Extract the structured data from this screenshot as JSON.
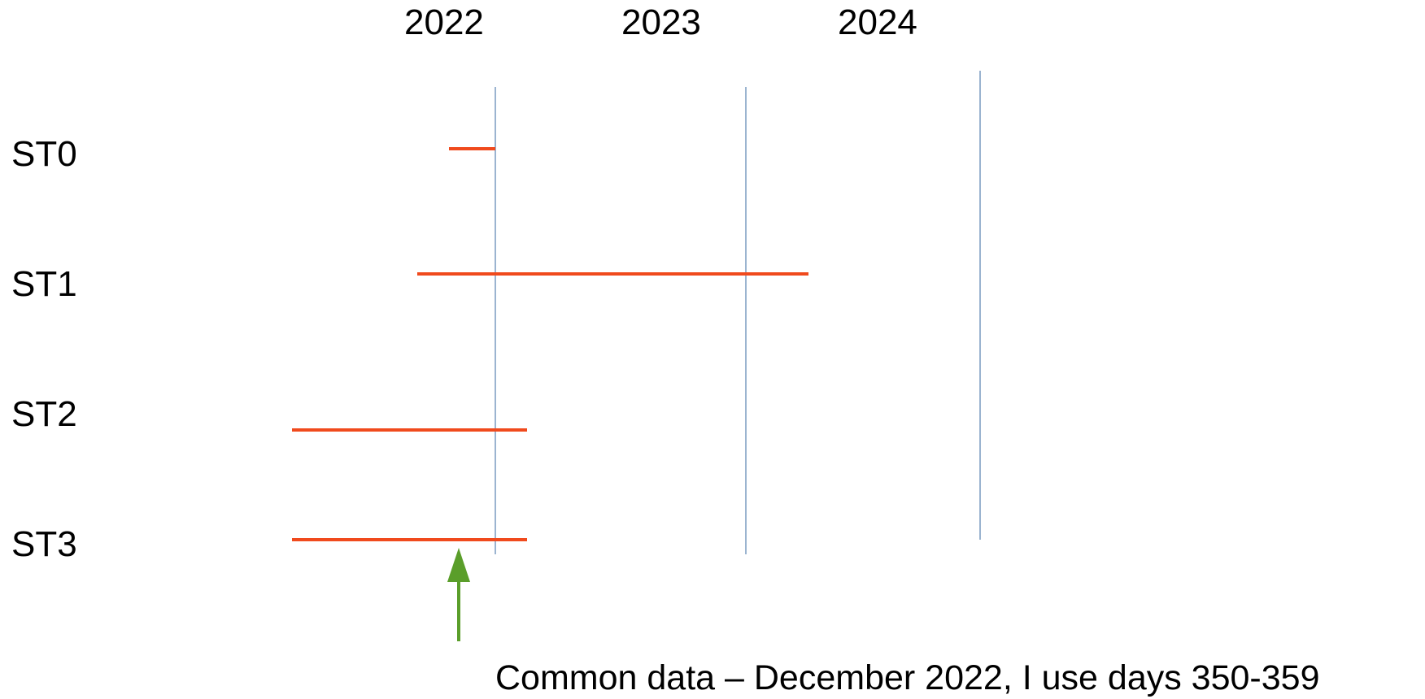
{
  "year_labels": [
    "2022",
    "2023",
    "2024"
  ],
  "rows": [
    {
      "label": "ST0"
    },
    {
      "label": "ST1"
    },
    {
      "label": "ST2"
    },
    {
      "label": "ST3"
    }
  ],
  "note": "Common data – December 2022, I use days 350-359",
  "colors": {
    "bar": "#f04a1d",
    "gridline": "#7a9cc0",
    "arrow": "#5a9e2a",
    "text": "#000000"
  }
}
